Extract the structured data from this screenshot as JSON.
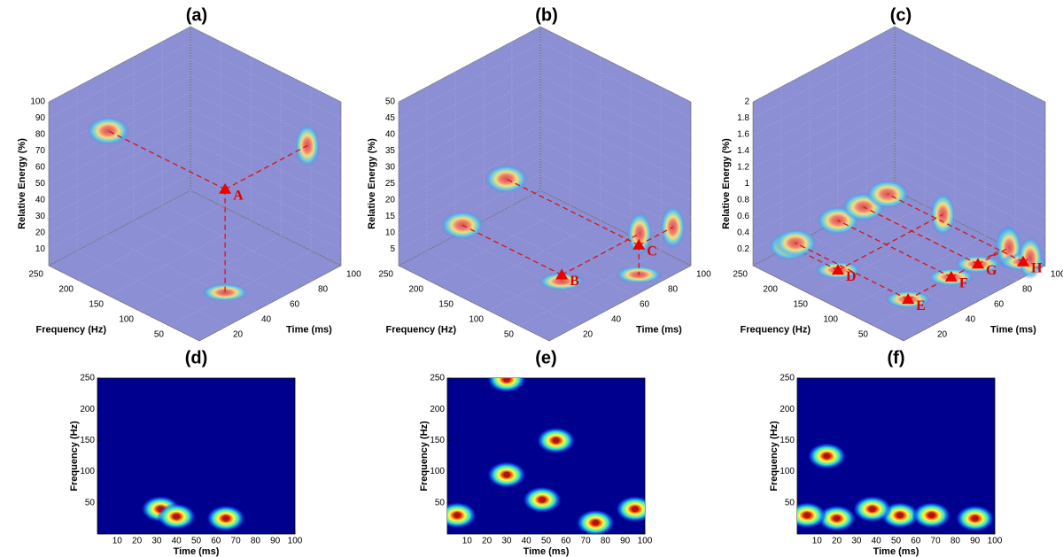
{
  "chart_data": [
    {
      "type": "surface3d",
      "title": "(a)",
      "x_label": "Time (ms)",
      "y_label": "Frequency (Hz)",
      "z_label": "Relative Energy (%)",
      "xlim": [
        0,
        100
      ],
      "xticks": [
        20,
        40,
        60,
        80,
        100
      ],
      "ylim": [
        0,
        250
      ],
      "yticks": [
        50,
        100,
        150,
        200,
        250
      ],
      "zlim": [
        0,
        100
      ],
      "zticks": [
        10,
        20,
        30,
        40,
        50,
        60,
        70,
        80,
        90,
        100
      ],
      "points": {
        "labels": [
          "A"
        ],
        "x": [
          42
        ],
        "y": [
          56
        ],
        "z": [
          63
        ]
      }
    },
    {
      "type": "surface3d",
      "title": "(b)",
      "x_label": "Time (ms)",
      "y_label": "Frequency (Hz)",
      "z_label": "Relative Energy (%)",
      "xlim": [
        0,
        100
      ],
      "xticks": [
        20,
        40,
        60,
        80,
        100
      ],
      "ylim": [
        0,
        250
      ],
      "yticks": [
        50,
        100,
        150,
        200,
        250
      ],
      "zlim": [
        0,
        50
      ],
      "zticks": [
        5,
        10,
        15,
        20,
        25,
        30,
        35,
        40,
        45,
        50
      ],
      "points": {
        "labels": [
          "B",
          "C"
        ],
        "x": [
          45,
          76
        ],
        "y": [
          85,
          30
        ],
        "z": [
          2,
          9
        ]
      }
    },
    {
      "type": "surface3d",
      "title": "(c)",
      "x_label": "Time (ms)",
      "y_label": "Frequency (Hz)",
      "z_label": "Relative Energy (%)",
      "xlim": [
        0,
        100
      ],
      "xticks": [
        20,
        40,
        60,
        80,
        100
      ],
      "ylim": [
        0,
        250
      ],
      "yticks": [
        50,
        100,
        150,
        200,
        250
      ],
      "zlim": [
        0,
        2
      ],
      "zticks": [
        0.2,
        0.4,
        0.6,
        0.8,
        1,
        1.2,
        1.4,
        1.6,
        1.8,
        2
      ],
      "points": {
        "labels": [
          "D",
          "E",
          "F",
          "G",
          "H"
        ],
        "x": [
          26,
          30,
          60,
          78,
          95
        ],
        "y": [
          170,
          63,
          62,
          60,
          25
        ],
        "z": [
          0,
          0,
          0,
          0,
          0
        ]
      }
    },
    {
      "type": "heatmap",
      "title": "(d)",
      "x_label": "Time (ms)",
      "y_label": "Frequency (Hz)",
      "xlim": [
        0,
        100
      ],
      "xticks": [
        10,
        20,
        30,
        40,
        50,
        60,
        70,
        80,
        90,
        100
      ],
      "ylim": [
        0,
        250
      ],
      "yticks": [
        50,
        100,
        150,
        200,
        250
      ],
      "hotspots": {
        "x": [
          32,
          40,
          65
        ],
        "y": [
          40,
          28,
          25
        ]
      }
    },
    {
      "type": "heatmap",
      "title": "(e)",
      "x_label": "Time (ms)",
      "y_label": "Frequency (Hz)",
      "xlim": [
        0,
        100
      ],
      "xticks": [
        10,
        20,
        30,
        40,
        50,
        60,
        70,
        80,
        90,
        100
      ],
      "ylim": [
        0,
        250
      ],
      "yticks": [
        50,
        100,
        150,
        200,
        250
      ],
      "hotspots": {
        "x": [
          48,
          30,
          75,
          55,
          5,
          95,
          30
        ],
        "y": [
          55,
          95,
          18,
          150,
          30,
          40,
          248
        ]
      }
    },
    {
      "type": "heatmap",
      "title": "(f)",
      "x_label": "Time (ms)",
      "y_label": "Frequency (Hz)",
      "xlim": [
        0,
        100
      ],
      "xticks": [
        10,
        20,
        30,
        40,
        50,
        60,
        70,
        80,
        90,
        100
      ],
      "ylim": [
        0,
        250
      ],
      "yticks": [
        50,
        100,
        150,
        200,
        250
      ],
      "hotspots": {
        "x": [
          20,
          52,
          68,
          90,
          15,
          38,
          5
        ],
        "y": [
          25,
          30,
          30,
          25,
          125,
          40,
          30
        ]
      }
    }
  ]
}
